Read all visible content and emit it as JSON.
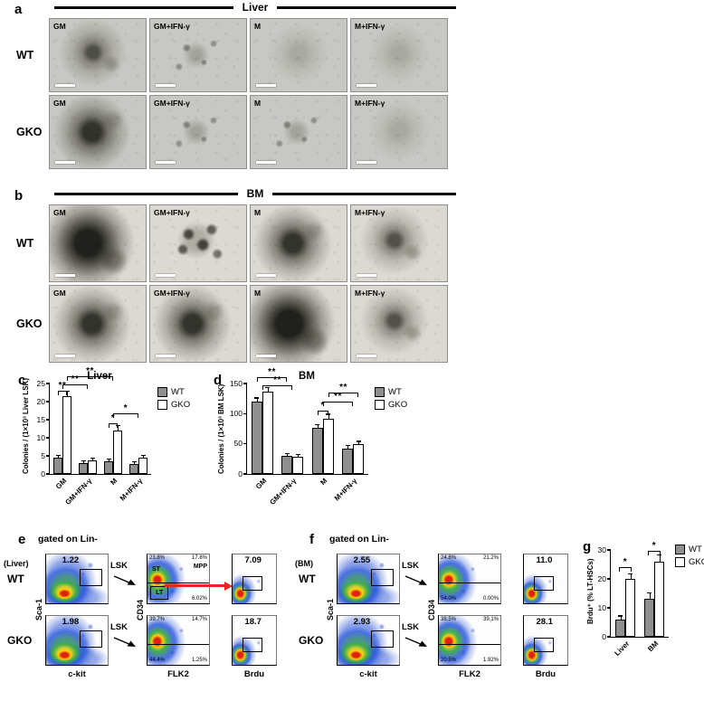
{
  "colors": {
    "wt_bar": "#8f8f8f",
    "gko_bar": "#ffffff",
    "red_arrow": "#e8251f"
  },
  "panel_a": {
    "label": "a",
    "title": "Liver",
    "rows": [
      {
        "label": "WT",
        "cells": [
          {
            "label": "GM",
            "colony": "medium"
          },
          {
            "label": "GM+IFN-γ",
            "colony": "sparse"
          },
          {
            "label": "M",
            "colony": "faint"
          },
          {
            "label": "M+IFN-γ",
            "colony": "faint"
          }
        ]
      },
      {
        "label": "GKO",
        "cells": [
          {
            "label": "GM",
            "colony": "large"
          },
          {
            "label": "GM+IFN-γ",
            "colony": "sparse"
          },
          {
            "label": "M",
            "colony": "sparse"
          },
          {
            "label": "M+IFN-γ",
            "colony": "faint"
          }
        ]
      }
    ]
  },
  "panel_b": {
    "label": "b",
    "title": "BM",
    "rows": [
      {
        "label": "WT",
        "cells": [
          {
            "label": "GM",
            "colony": "xlarge"
          },
          {
            "label": "GM+IFN-γ",
            "colony": "spots"
          },
          {
            "label": "M",
            "colony": "large"
          },
          {
            "label": "M+IFN-γ",
            "colony": "medium"
          }
        ]
      },
      {
        "label": "GKO",
        "cells": [
          {
            "label": "GM",
            "colony": "large"
          },
          {
            "label": "GM+IFN-γ",
            "colony": "large"
          },
          {
            "label": "M",
            "colony": "xlarge"
          },
          {
            "label": "M+IFN-γ",
            "colony": "medium"
          }
        ]
      }
    ]
  },
  "chart_data": [
    {
      "id": "c",
      "type": "bar",
      "panel_label": "c",
      "title": "Liver",
      "ylabel": "Colonies / (1×10³ Liver LSK)",
      "categories": [
        "GM",
        "GM+IFN-γ",
        "M",
        "M+IFN-γ"
      ],
      "series": [
        {
          "name": "WT",
          "color": "#8f8f8f",
          "values": [
            4.5,
            3.0,
            3.5,
            2.8
          ],
          "errors": [
            0.5,
            0.4,
            0.5,
            0.4
          ]
        },
        {
          "name": "GKO",
          "color": "#ffffff",
          "values": [
            21.5,
            3.8,
            12.0,
            4.4
          ],
          "errors": [
            1.2,
            0.5,
            1.3,
            0.6
          ]
        }
      ],
      "ylim": [
        0,
        25
      ],
      "yticks": [
        0,
        5,
        10,
        15,
        20,
        25
      ],
      "grid": false,
      "legend_position": "right",
      "significance": [
        {
          "text": "**",
          "x1": 0.08,
          "x2": 0.17,
          "y": 0.92,
          "line": true
        },
        {
          "text": "**",
          "x1": 0.125,
          "x2": 0.375,
          "y": 0.99,
          "line": true
        },
        {
          "text": "**",
          "x1": 0.17,
          "x2": 0.625,
          "y": 1.08,
          "line": true
        },
        {
          "text": "*",
          "x1": 0.58,
          "x2": 0.67,
          "y": 0.56,
          "line": true
        },
        {
          "text": "*",
          "x1": 0.625,
          "x2": 0.875,
          "y": 0.67,
          "line": true
        }
      ]
    },
    {
      "id": "d",
      "type": "bar",
      "panel_label": "d",
      "title": "BM",
      "ylabel": "Colonies / (1×10³ BM LSK)",
      "categories": [
        "GM",
        "GM+IFN-γ",
        "M",
        "M+IFN-γ"
      ],
      "series": [
        {
          "name": "WT",
          "color": "#8f8f8f",
          "values": [
            120,
            30,
            76,
            42
          ],
          "errors": [
            5,
            3,
            5,
            4
          ]
        },
        {
          "name": "GKO",
          "color": "#ffffff",
          "values": [
            136,
            28,
            92,
            49
          ],
          "errors": [
            6,
            3,
            6,
            4
          ]
        }
      ],
      "ylim": [
        0,
        150
      ],
      "yticks": [
        0,
        50,
        100,
        150
      ],
      "grid": false,
      "legend_position": "right",
      "significance": [
        {
          "text": "**",
          "x1": 0.08,
          "x2": 0.33,
          "y": 1.07,
          "line": true
        },
        {
          "text": "**",
          "x1": 0.125,
          "x2": 0.375,
          "y": 0.98,
          "line": true
        },
        {
          "text": "*",
          "x1": 0.58,
          "x2": 0.67,
          "y": 0.7,
          "line": true
        },
        {
          "text": "**",
          "x1": 0.625,
          "x2": 0.875,
          "y": 0.8,
          "line": true
        },
        {
          "text": "**",
          "x1": 0.67,
          "x2": 0.92,
          "y": 0.9,
          "line": true
        }
      ]
    },
    {
      "id": "g",
      "type": "bar",
      "panel_label": "g",
      "title": "",
      "ylabel": "Brdu⁺ (% LT-HSCs)",
      "categories": [
        "Liver",
        "BM"
      ],
      "series": [
        {
          "name": "WT",
          "color": "#8f8f8f",
          "values": [
            6,
            13
          ],
          "errors": [
            1.0,
            2.0
          ]
        },
        {
          "name": "GKO",
          "color": "#ffffff",
          "values": [
            20,
            26
          ],
          "errors": [
            1.5,
            2.0
          ]
        }
      ],
      "ylim": [
        0,
        30
      ],
      "yticks": [
        0,
        10,
        20,
        30
      ],
      "grid": false,
      "legend_position": "right",
      "significance": [
        {
          "text": "*",
          "x1": 0.14,
          "x2": 0.36,
          "y": 0.8,
          "line": true
        },
        {
          "text": "*",
          "x1": 0.64,
          "x2": 0.86,
          "y": 0.99,
          "line": true
        }
      ]
    }
  ],
  "panel_e": {
    "label": "e",
    "side_label": "(Liver)",
    "title": "gated on Lin-",
    "lsk_label": "LSK",
    "axis": {
      "y1": "Sca-1",
      "x1": "c-kit",
      "y2": "CD34",
      "x2": "FLK2",
      "x3": "Brdu"
    },
    "rows": [
      {
        "label": "WT",
        "lsk_value": "1.22",
        "quads": {
          "tl": "23.8%",
          "tr": "17.8%",
          "bl": "",
          "br": "6.02%"
        },
        "gate_labels": {
          "st": "ST",
          "mpp": "MPP",
          "lt": "LT"
        },
        "brdu_value": "7.09",
        "red_arrow": true
      },
      {
        "label": "GKO",
        "lsk_value": "1.98",
        "quads": {
          "tl": "39.7%",
          "tr": "14.7%",
          "bl": "44.4%",
          "br": "1.25%"
        },
        "brdu_value": "18.7"
      }
    ]
  },
  "panel_f": {
    "label": "f",
    "side_label": "(BM)",
    "title": "gated on Lin-",
    "lsk_label": "LSK",
    "axis": {
      "y1": "Sca-1",
      "x1": "c-kit",
      "y2": "CD34",
      "x2": "FLK2",
      "x3": "Brdu"
    },
    "rows": [
      {
        "label": "WT",
        "lsk_value": "2.55",
        "quads": {
          "tl": "24.8%",
          "tr": "21.2%",
          "bl": "54.0%",
          "br": "0.00%"
        },
        "brdu_value": "11.0"
      },
      {
        "label": "GKO",
        "lsk_value": "2.93",
        "quads": {
          "tl": "38.5%",
          "tr": "39.1%",
          "bl": "20.5%",
          "br": "1.92%"
        },
        "brdu_value": "28.1"
      }
    ]
  }
}
